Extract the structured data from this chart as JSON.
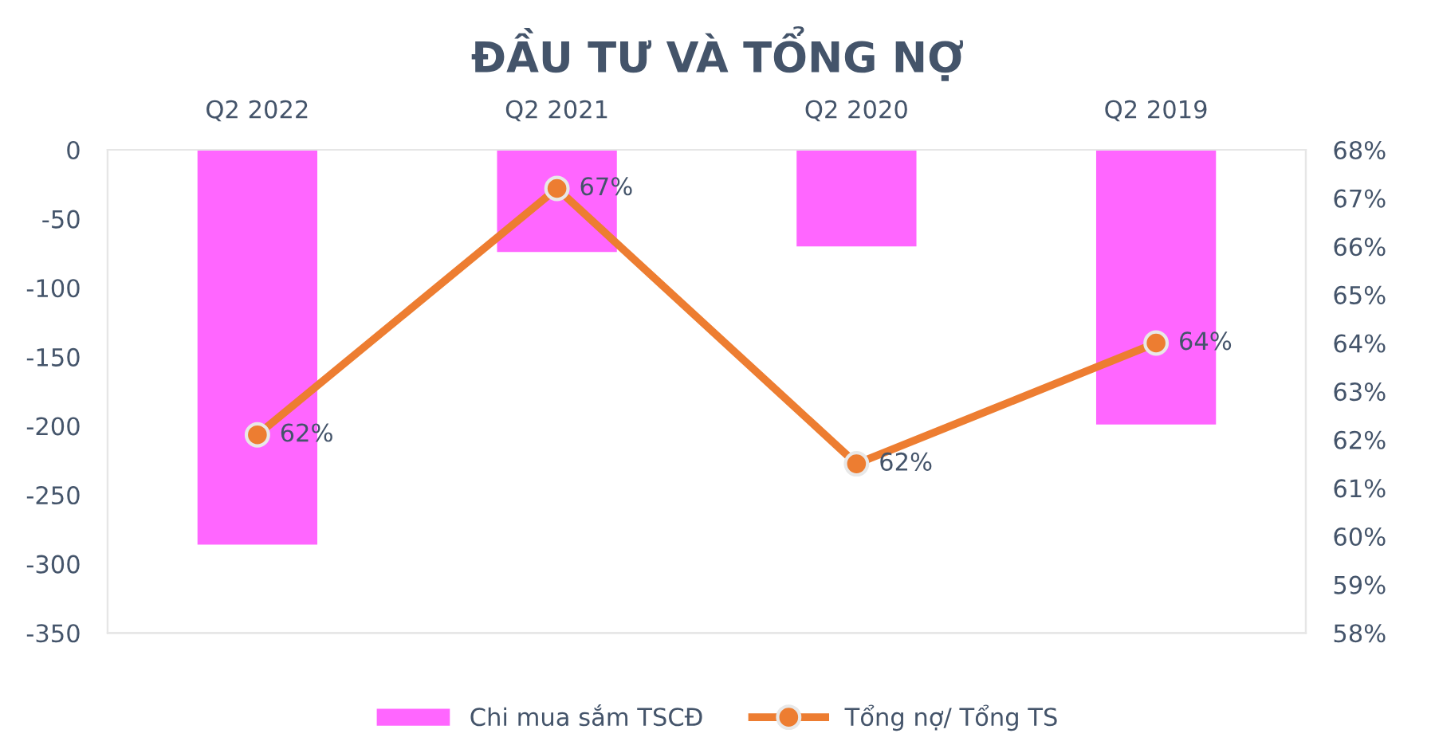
{
  "chart_data": {
    "type": "bar",
    "title": "ĐẦU TƯ VÀ TỔNG NỢ",
    "categories": [
      "Q2 2022",
      "Q2 2021",
      "Q2 2020",
      "Q2 2019"
    ],
    "series": [
      {
        "name": "Chi mua sắm TSCĐ",
        "color": "#ff66ff",
        "values": [
          -286,
          -74,
          -70,
          -199
        ]
      },
      {
        "name": "Tổng nợ/ Tổng TS",
        "type": "line",
        "axis": "y2",
        "color": "#ed7d31",
        "values": [
          62.1,
          67.2,
          61.5,
          64.0
        ],
        "value_labels": [
          "62%",
          "67%",
          "62%",
          "64%"
        ]
      }
    ],
    "ylim": [
      -350,
      0
    ],
    "yticks": [
      -350,
      -300,
      -250,
      -200,
      -150,
      -100,
      -50,
      0
    ],
    "y2lim": [
      58,
      68
    ],
    "y2ticks": [
      {
        "value": 58,
        "label": "58%"
      },
      {
        "value": 59,
        "label": "59%"
      },
      {
        "value": 60,
        "label": "60%"
      },
      {
        "value": 61,
        "label": "61%"
      },
      {
        "value": 62,
        "label": "62%"
      },
      {
        "value": 63,
        "label": "63%"
      },
      {
        "value": 64,
        "label": "64%"
      },
      {
        "value": 65,
        "label": "65%"
      },
      {
        "value": 66,
        "label": "66%"
      },
      {
        "value": 67,
        "label": "67%"
      },
      {
        "value": 68,
        "label": "68%"
      }
    ],
    "marker": "circle",
    "line_style": "solid",
    "legend": "bottom",
    "grid": false
  }
}
